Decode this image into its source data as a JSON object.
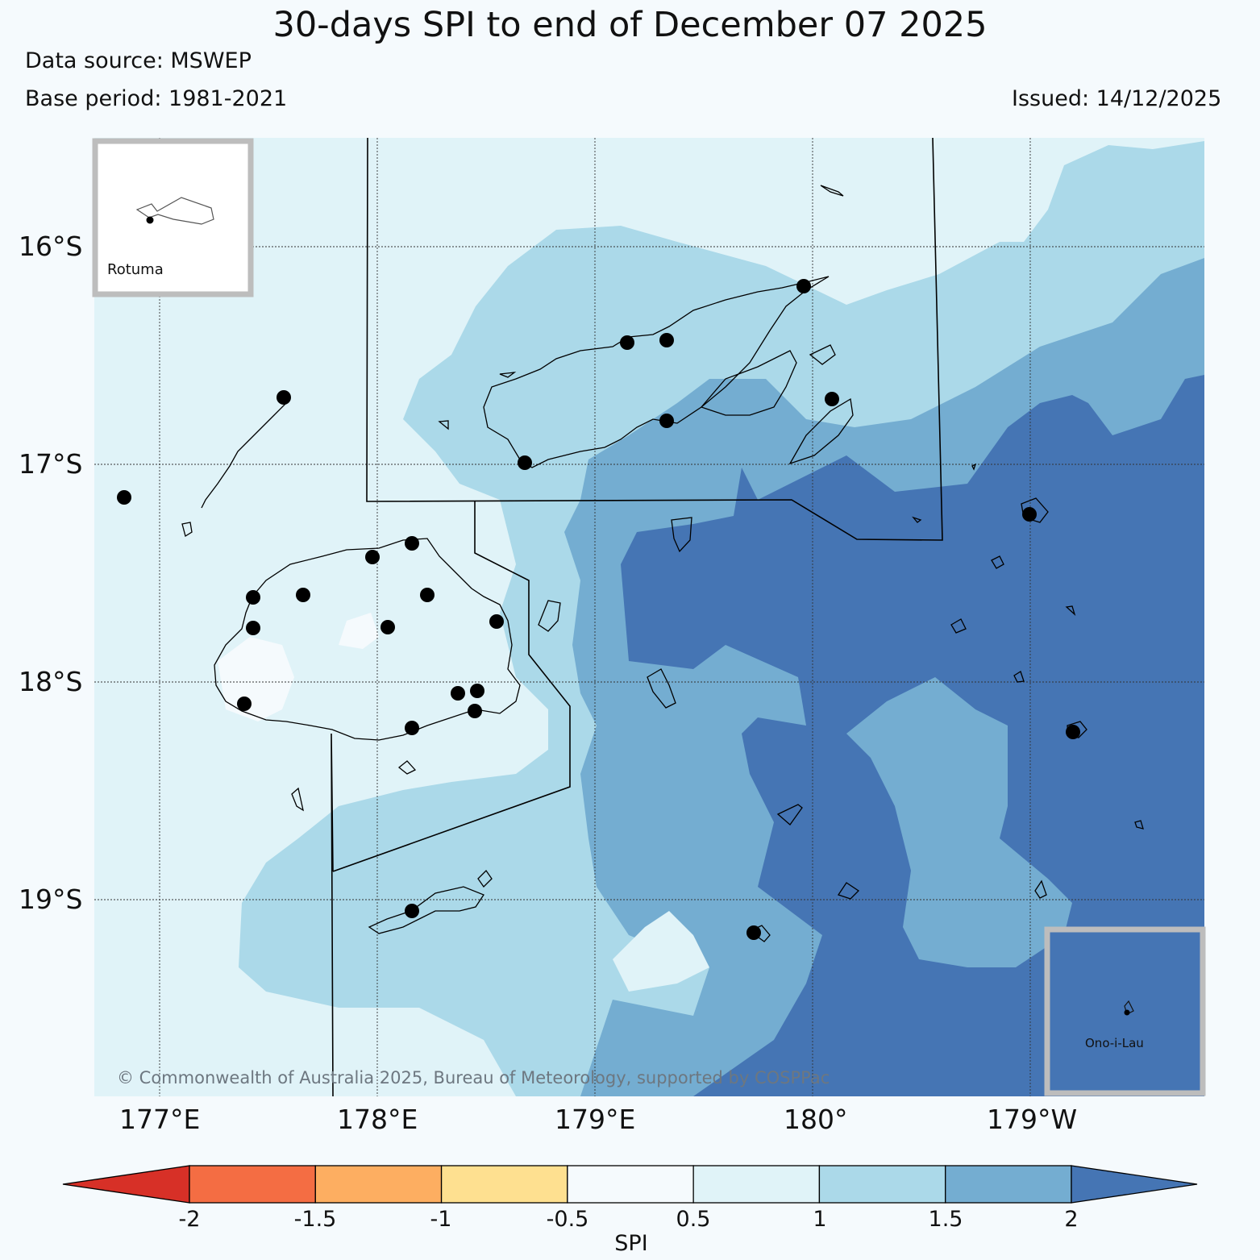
{
  "title": "30-days SPI to end of December 07 2025",
  "data_source": "Data source: MSWEP",
  "base_period": "Base period: 1981-2021",
  "issued": "Issued: 14/12/2025",
  "lat_labels": [
    "16°S",
    "17°S",
    "18°S",
    "19°S"
  ],
  "lon_labels": [
    "177°E",
    "178°E",
    "179°E",
    "180°",
    "179°W"
  ],
  "inset_rotuma": "Rotuma",
  "inset_ono": "Ono-i-Lau",
  "copyright": "© Commonwealth of Australia 2025, Bureau of Meteorology, supported by COSPPac",
  "colorbar": {
    "title": "SPI",
    "ticks": [
      "-2",
      "-1.5",
      "-1",
      "-0.5",
      "0.5",
      "1",
      "1.5",
      "2"
    ],
    "colors": [
      "#d73027",
      "#f46d43",
      "#fdae61",
      "#fee090",
      "#f5fafd",
      "#e0f3f8",
      "#abd9e9",
      "#74add1",
      "#4575b4"
    ]
  },
  "icons": [
    "station-marker-icon",
    "coastline-icon",
    "boundary-line-icon"
  ]
}
